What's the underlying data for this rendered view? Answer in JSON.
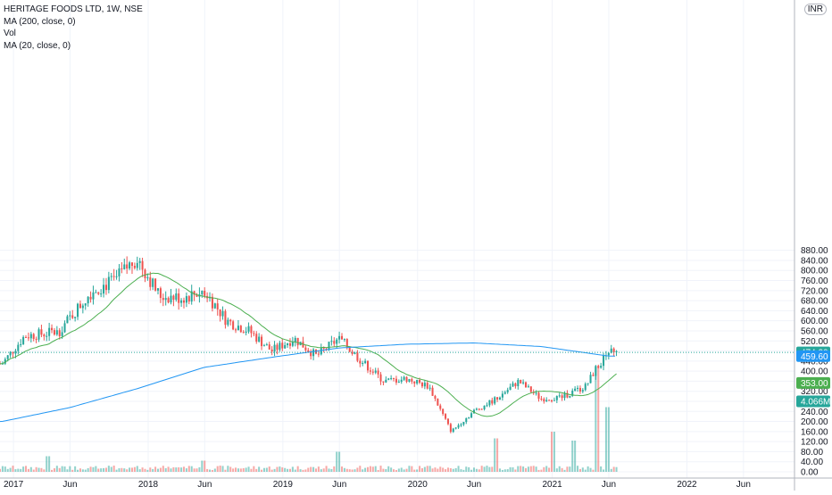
{
  "header": {
    "symbol_line": "HERITAGE FOODS LTD, 1W, NSE",
    "indicator_1": "MA (200, close, 0)",
    "indicator_2": "Vol",
    "indicator_3": "MA (20, close, 0)",
    "currency": "INR"
  },
  "colors": {
    "up": "#26a69a",
    "down": "#ef5350",
    "ma200": "#2196f3",
    "ma20": "#4caf50",
    "axis_text": "#131722",
    "grid": "#f0f3fa"
  },
  "chart_data": {
    "type": "candlestick",
    "interval": "1W",
    "x_ticks": [
      "2017",
      "Jun",
      "2018",
      "Jun",
      "2019",
      "Jun",
      "2020",
      "Jun",
      "2021",
      "Jun",
      "2022",
      "Jun"
    ],
    "y_ticks": [
      "880.00",
      "840.00",
      "800.00",
      "760.00",
      "720.00",
      "680.00",
      "640.00",
      "600.00",
      "560.00",
      "520.00",
      "480.00",
      "440.00",
      "400.00",
      "360.00",
      "320.00",
      "280.00",
      "240.00",
      "200.00",
      "160.00",
      "120.00",
      "80.00",
      "40.00",
      "0.00"
    ],
    "ylim": [
      0,
      920
    ],
    "price_path_anchors": [
      {
        "date": "2016-12",
        "price": 430
      },
      {
        "date": "2017-02",
        "price": 540
      },
      {
        "date": "2017-05",
        "price": 555
      },
      {
        "date": "2017-08",
        "price": 720
      },
      {
        "date": "2017-10",
        "price": 760
      },
      {
        "date": "2017-12",
        "price": 850
      },
      {
        "date": "2018-02",
        "price": 700
      },
      {
        "date": "2018-04",
        "price": 690
      },
      {
        "date": "2018-06",
        "price": 720
      },
      {
        "date": "2018-08",
        "price": 600
      },
      {
        "date": "2018-10",
        "price": 560
      },
      {
        "date": "2018-12",
        "price": 480
      },
      {
        "date": "2019-02",
        "price": 530
      },
      {
        "date": "2019-04",
        "price": 460
      },
      {
        "date": "2019-06",
        "price": 530
      },
      {
        "date": "2019-08",
        "price": 440
      },
      {
        "date": "2019-10",
        "price": 360
      },
      {
        "date": "2019-12",
        "price": 370
      },
      {
        "date": "2020-02",
        "price": 340
      },
      {
        "date": "2020-04",
        "price": 160
      },
      {
        "date": "2020-06",
        "price": 240
      },
      {
        "date": "2020-08",
        "price": 290
      },
      {
        "date": "2020-10",
        "price": 360
      },
      {
        "date": "2020-12",
        "price": 290
      },
      {
        "date": "2021-02",
        "price": 300
      },
      {
        "date": "2021-04",
        "price": 340
      },
      {
        "date": "2021-05",
        "price": 420
      },
      {
        "date": "2021-06",
        "price": 474.2
      }
    ],
    "ma200_anchors": [
      {
        "date": "2016-12",
        "price": 200
      },
      {
        "date": "2017-06",
        "price": 255
      },
      {
        "date": "2017-12",
        "price": 330
      },
      {
        "date": "2018-06",
        "price": 415
      },
      {
        "date": "2018-12",
        "price": 455
      },
      {
        "date": "2019-06",
        "price": 492
      },
      {
        "date": "2019-12",
        "price": 507
      },
      {
        "date": "2020-06",
        "price": 512
      },
      {
        "date": "2020-12",
        "price": 498
      },
      {
        "date": "2021-06",
        "price": 460
      }
    ],
    "volume_bursts": [
      {
        "date": "2017-04",
        "value": 35
      },
      {
        "date": "2018-06",
        "value": 25
      },
      {
        "date": "2019-06",
        "value": 45
      },
      {
        "date": "2020-08",
        "value": 75
      },
      {
        "date": "2021-01",
        "value": 90
      },
      {
        "date": "2021-03",
        "value": 70
      },
      {
        "date": "2021-05",
        "value": 235
      },
      {
        "date": "2021-06",
        "value": 145
      }
    ],
    "last_values": {
      "price": "474.20",
      "ma200": "459.60",
      "ma20": "353.00",
      "volume": "4.066M"
    },
    "grid": true
  }
}
